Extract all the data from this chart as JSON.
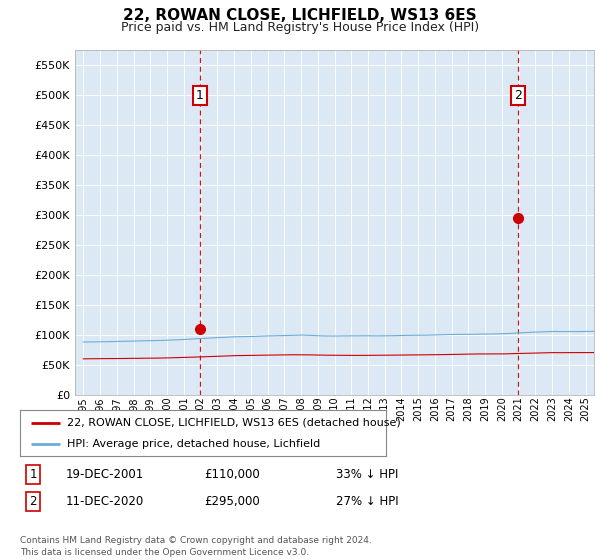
{
  "title": "22, ROWAN CLOSE, LICHFIELD, WS13 6ES",
  "subtitle": "Price paid vs. HM Land Registry's House Price Index (HPI)",
  "background_color": "#ffffff",
  "plot_bg_color": "#dce9f5",
  "hpi_color": "#6baed6",
  "price_color": "#cc0000",
  "dashed_line_color": "#cc0000",
  "ylim": [
    0,
    575000
  ],
  "yticks": [
    0,
    50000,
    100000,
    150000,
    200000,
    250000,
    300000,
    350000,
    400000,
    450000,
    500000,
    550000
  ],
  "purchase1": {
    "date_num": 2001.96,
    "price": 110000,
    "label": "1",
    "date_str": "19-DEC-2001"
  },
  "purchase2": {
    "date_num": 2020.94,
    "price": 295000,
    "label": "2",
    "date_str": "11-DEC-2020"
  },
  "legend_entries": [
    "22, ROWAN CLOSE, LICHFIELD, WS13 6ES (detached house)",
    "HPI: Average price, detached house, Lichfield"
  ],
  "table_rows": [
    [
      "1",
      "19-DEC-2001",
      "£110,000",
      "33% ↓ HPI"
    ],
    [
      "2",
      "11-DEC-2020",
      "£295,000",
      "27% ↓ HPI"
    ]
  ],
  "footer": "Contains HM Land Registry data © Crown copyright and database right 2024.\nThis data is licensed under the Open Government Licence v3.0.",
  "xmin": 1994.5,
  "xmax": 2025.5
}
